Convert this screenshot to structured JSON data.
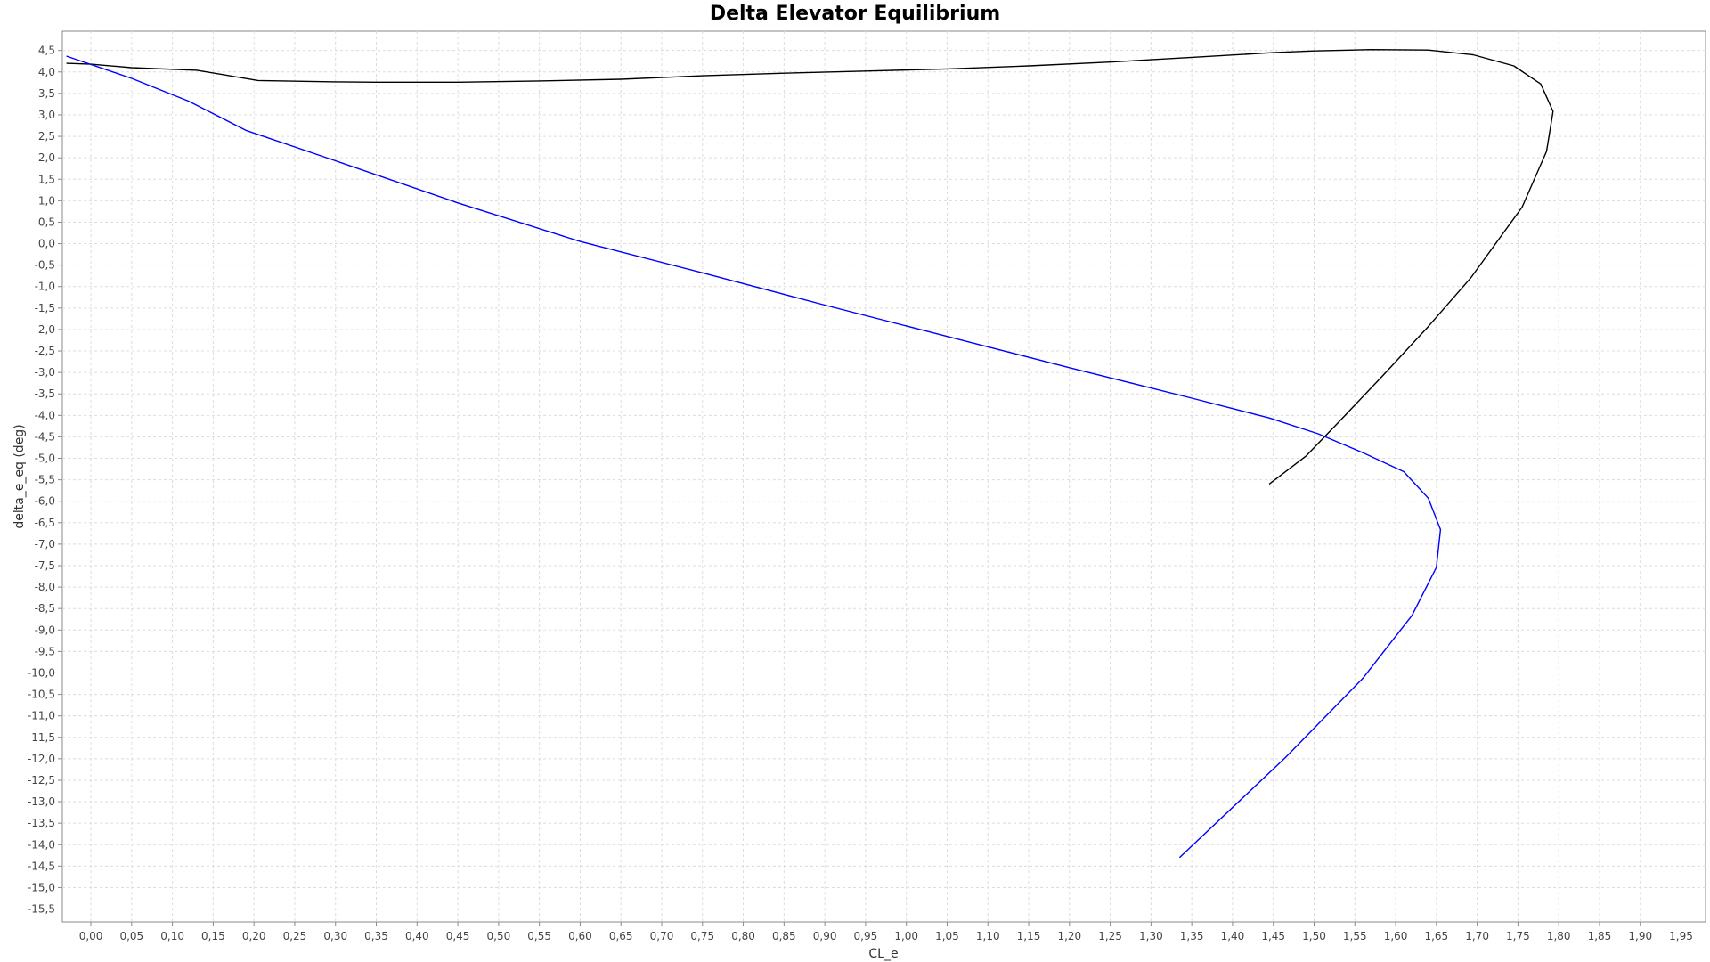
{
  "chart_data": {
    "type": "line",
    "title": "Delta Elevator Equilibrium",
    "xlabel": "CL_e",
    "ylabel": "delta_e_eq (deg)",
    "xlim": [
      -0.035,
      1.98
    ],
    "ylim": [
      -15.8,
      4.95
    ],
    "xticks": [
      0,
      0.05,
      0.1,
      0.15,
      0.2,
      0.25,
      0.3,
      0.35,
      0.4,
      0.45,
      0.5,
      0.55,
      0.6,
      0.65,
      0.7,
      0.75,
      0.8,
      0.85,
      0.9,
      0.95,
      1.0,
      1.05,
      1.1,
      1.15,
      1.2,
      1.25,
      1.3,
      1.35,
      1.4,
      1.45,
      1.5,
      1.55,
      1.6,
      1.65,
      1.7,
      1.75,
      1.8,
      1.85,
      1.9,
      1.95
    ],
    "xtick_labels": [
      "0,00",
      "0,05",
      "0,10",
      "0,15",
      "0,20",
      "0,25",
      "0,30",
      "0,35",
      "0,40",
      "0,45",
      "0,50",
      "0,55",
      "0,60",
      "0,65",
      "0,70",
      "0,75",
      "0,80",
      "0,85",
      "0,90",
      "0,95",
      "1,00",
      "1,05",
      "1,10",
      "1,15",
      "1,20",
      "1,25",
      "1,30",
      "1,35",
      "1,40",
      "1,45",
      "1,50",
      "1,55",
      "1,60",
      "1,65",
      "1,70",
      "1,75",
      "1,80",
      "1,85",
      "1,90",
      "1,95"
    ],
    "yticks": [
      4.5,
      4.0,
      3.5,
      3.0,
      2.5,
      2.0,
      1.5,
      1.0,
      0.5,
      0.0,
      -0.5,
      -1.0,
      -1.5,
      -2.0,
      -2.5,
      -3.0,
      -3.5,
      -4.0,
      -4.5,
      -5.0,
      -5.5,
      -6.0,
      -6.5,
      -7.0,
      -7.5,
      -8.0,
      -8.5,
      -9.0,
      -9.5,
      -10.0,
      -10.5,
      -11.0,
      -11.5,
      -12.0,
      -12.5,
      -13.0,
      -13.5,
      -14.0,
      -14.5,
      -15.0,
      -15.5
    ],
    "ytick_labels": [
      "4,5",
      "4,0",
      "3,5",
      "3,0",
      "2,5",
      "2,0",
      "1,5",
      "1,0",
      "0,5",
      "0,0",
      "-0,5",
      "-1,0",
      "-1,5",
      "-2,0",
      "-2,5",
      "-3,0",
      "-3,5",
      "-4,0",
      "-4,5",
      "-5,0",
      "-5,5",
      "-6,0",
      "-6,5",
      "-7,0",
      "-7,5",
      "-8,0",
      "-8,5",
      "-9,0",
      "-9,5",
      "-10,0",
      "-10,5",
      "-11,0",
      "-11,5",
      "-12,0",
      "-12,5",
      "-13,0",
      "-13,5",
      "-14,0",
      "-14,5",
      "-15,0",
      "-15,5"
    ],
    "grid": true,
    "legend": "none",
    "series": [
      {
        "color": "#000000",
        "x": [
          -0.03,
          0.0,
          0.05,
          0.13,
          0.205,
          0.3,
          0.35,
          0.45,
          0.55,
          0.65,
          0.75,
          0.85,
          0.95,
          1.05,
          1.15,
          1.25,
          1.35,
          1.45,
          1.5,
          1.57,
          1.64,
          1.695,
          1.745,
          1.778,
          1.793,
          1.785,
          1.755,
          1.692,
          1.64,
          1.585,
          1.53,
          1.49,
          1.445
        ],
        "y": [
          4.2,
          4.18,
          4.1,
          4.04,
          3.8,
          3.77,
          3.76,
          3.76,
          3.79,
          3.83,
          3.91,
          3.97,
          4.02,
          4.07,
          4.14,
          4.23,
          4.34,
          4.45,
          4.49,
          4.52,
          4.51,
          4.4,
          4.14,
          3.72,
          3.08,
          2.15,
          0.85,
          -0.8,
          -1.93,
          -3.06,
          -4.16,
          -4.95,
          -5.6
        ]
      },
      {
        "color": "#0000ff",
        "x": [
          -0.03,
          0.05,
          0.12,
          0.19,
          0.3,
          0.45,
          0.6,
          0.75,
          0.9,
          1.05,
          1.2,
          1.35,
          1.445,
          1.505,
          1.56,
          1.61,
          1.64,
          1.655,
          1.65,
          1.62,
          1.56,
          1.465,
          1.335
        ],
        "y": [
          4.37,
          3.85,
          3.32,
          2.64,
          1.93,
          0.95,
          0.05,
          -0.68,
          -1.43,
          -2.16,
          -2.89,
          -3.6,
          -4.06,
          -4.43,
          -4.87,
          -5.31,
          -5.93,
          -6.66,
          -7.54,
          -8.66,
          -10.12,
          -11.97,
          -14.3
        ]
      }
    ]
  }
}
